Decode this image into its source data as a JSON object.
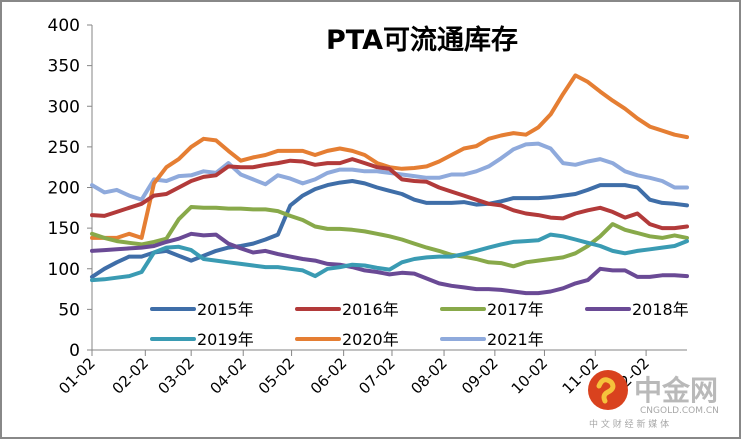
{
  "chart_data": {
    "type": "line",
    "title": "PTA可流通库存",
    "xlabel": "",
    "ylabel": "",
    "ylim": [
      0,
      400
    ],
    "yticks": [
      0,
      50,
      100,
      150,
      200,
      250,
      300,
      350,
      400
    ],
    "xtick_labels": [
      "01-02",
      "02-02",
      "03-02",
      "04-02",
      "05-02",
      "06-02",
      "07-02",
      "08-02",
      "09-02",
      "10-02",
      "11-02",
      "12-02"
    ],
    "xtick_week_index": [
      0,
      4.3,
      8,
      12.2,
      16.1,
      20.3,
      24.2,
      28.4,
      32.5,
      36.5,
      40.6,
      44.7
    ],
    "x_count": 49,
    "grid": false,
    "legend": "bottom-inside",
    "series": [
      {
        "name": "2015年",
        "color": "#3F6EA8",
        "values": [
          90,
          100,
          108,
          115,
          115,
          120,
          122,
          116,
          110,
          116,
          122,
          126,
          128,
          131,
          136,
          142,
          178,
          190,
          198,
          203,
          206,
          208,
          205,
          200,
          196,
          192,
          185,
          181,
          181,
          181,
          182,
          179,
          180,
          183,
          187,
          187,
          187,
          188,
          190,
          192,
          197,
          203,
          203,
          203,
          200,
          185,
          181,
          180,
          178,
          175,
          172,
          171,
          170,
          171
        ]
      },
      {
        "name": "2016年",
        "color": "#B23A3A",
        "values": [
          166,
          165,
          170,
          175,
          180,
          190,
          192,
          200,
          208,
          213,
          215,
          226,
          225,
          225,
          228,
          230,
          233,
          232,
          228,
          230,
          230,
          235,
          230,
          225,
          223,
          210,
          208,
          207,
          200,
          195,
          190,
          185,
          180,
          178,
          172,
          168,
          166,
          163,
          162,
          168,
          172,
          175,
          170,
          163,
          168,
          155,
          150,
          150,
          152,
          150,
          148,
          148,
          146
        ]
      },
      {
        "name": "2017年",
        "color": "#88A94A",
        "values": [
          143,
          138,
          134,
          132,
          130,
          133,
          137,
          161,
          176,
          175,
          175,
          174,
          174,
          173,
          173,
          171,
          165,
          160,
          152,
          149,
          149,
          148,
          146,
          143,
          140,
          136,
          131,
          126,
          122,
          117,
          115,
          112,
          108,
          107,
          103,
          108,
          110,
          112,
          114,
          119,
          128,
          140,
          155,
          148,
          144,
          140,
          138,
          141,
          138,
          136,
          133,
          130,
          127,
          124,
          122
        ]
      },
      {
        "name": "2018年",
        "color": "#6A4A95",
        "values": [
          122,
          123,
          124,
          125,
          126,
          128,
          133,
          137,
          143,
          141,
          142,
          131,
          125,
          120,
          122,
          118,
          115,
          112,
          110,
          106,
          105,
          102,
          98,
          96,
          93,
          95,
          94,
          88,
          82,
          79,
          77,
          75,
          75,
          74,
          72,
          70,
          70,
          72,
          76,
          82,
          86,
          100,
          98,
          98,
          90,
          90,
          92,
          92,
          91,
          90,
          88,
          87,
          85,
          83
        ]
      },
      {
        "name": "2019年",
        "color": "#3A9BB3",
        "values": [
          86,
          87,
          89,
          91,
          96,
          120,
          126,
          127,
          123,
          112,
          110,
          108,
          106,
          104,
          102,
          102,
          100,
          98,
          91,
          100,
          102,
          105,
          104,
          101,
          99,
          108,
          112,
          114,
          115,
          115,
          118,
          122,
          126,
          130,
          133,
          134,
          135,
          142,
          140,
          136,
          132,
          128,
          122,
          119,
          122,
          124,
          126,
          128,
          134,
          136,
          138,
          138,
          138,
          138
        ]
      },
      {
        "name": "2020年",
        "color": "#E57E33",
        "values": [
          138,
          138,
          138,
          143,
          138,
          205,
          225,
          235,
          250,
          260,
          258,
          245,
          233,
          237,
          240,
          245,
          245,
          245,
          240,
          245,
          248,
          245,
          240,
          230,
          225,
          223,
          224,
          226,
          232,
          240,
          248,
          251,
          260,
          264,
          267,
          265,
          274,
          290,
          315,
          338,
          330,
          318,
          307,
          297,
          285,
          275,
          270,
          265,
          262,
          258,
          252,
          245,
          237,
          230,
          215
        ]
      },
      {
        "name": "2021年",
        "color": "#8FAADC",
        "values": [
          203,
          194,
          197,
          190,
          185,
          210,
          208,
          214,
          215,
          220,
          218,
          230,
          216,
          210,
          204,
          215,
          211,
          205,
          210,
          218,
          222,
          222,
          220,
          220,
          218,
          216,
          214,
          212,
          212,
          216,
          216,
          220,
          226,
          236,
          247,
          253,
          254,
          248,
          230,
          228,
          232,
          235,
          230,
          220,
          215,
          212,
          208,
          200,
          200
        ]
      }
    ]
  },
  "watermark": {
    "brand": "中金网",
    "domain": "CNGOLD.COM.CN",
    "tagline": "中 文 财 经 新 媒 体"
  }
}
